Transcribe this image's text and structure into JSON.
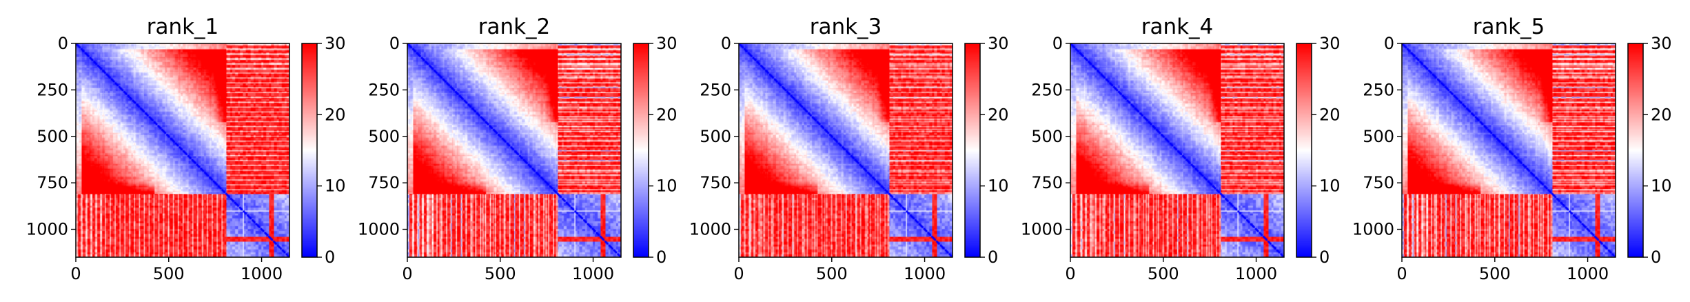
{
  "chart_data": {
    "type": "heatmap",
    "colormap": "bwr",
    "colorbar": {
      "vmin": 0,
      "vmax": 30,
      "ticks": [
        0,
        10,
        20,
        30
      ],
      "tick_labels": [
        "0",
        "10",
        "20",
        "30"
      ],
      "colors": {
        "low": "#0000ff",
        "mid": "#ffffff",
        "high": "#ff0000"
      }
    },
    "matrix_size": 1150,
    "block_boundary": 810,
    "grid": false,
    "x_ticks": [
      0,
      500,
      1000
    ],
    "x_tick_labels": [
      "0",
      "500",
      "1000"
    ],
    "y_ticks": [
      0,
      250,
      500,
      750,
      1000
    ],
    "y_tick_labels": [
      "0",
      "250",
      "500",
      "750",
      "1000"
    ],
    "panels": [
      {
        "title": "rank_1"
      },
      {
        "title": "rank_2"
      },
      {
        "title": "rank_3"
      },
      {
        "title": "rank_4"
      },
      {
        "title": "rank_5"
      }
    ]
  }
}
